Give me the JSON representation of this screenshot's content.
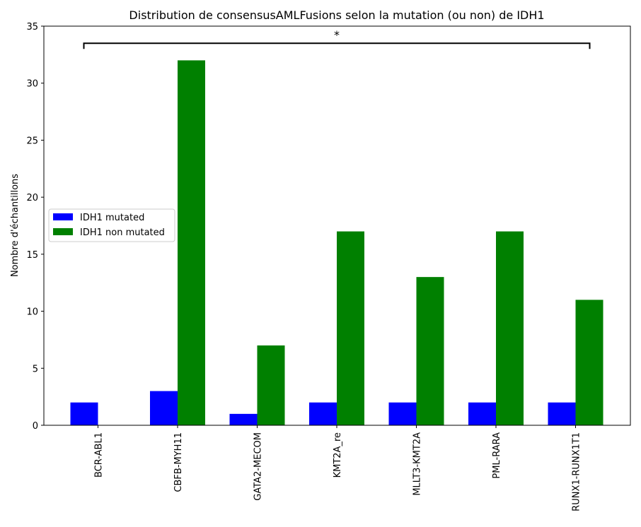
{
  "chart_data": {
    "type": "bar",
    "title": "Distribution de consensusAMLFusions selon la mutation (ou non) de IDH1",
    "xlabel": "",
    "ylabel": "Nombre d'échantillons",
    "categories": [
      "BCR-ABL1",
      "CBFB-MYH11",
      "GATA2-MECOM",
      "KMT2A_re",
      "MLLT3-KMT2A",
      "PML-RARA",
      "RUNX1-RUNX1T1"
    ],
    "series": [
      {
        "name": "IDH1 mutated",
        "color": "#0000ff",
        "values": [
          2,
          3,
          1,
          2,
          2,
          2,
          2
        ]
      },
      {
        "name": "IDH1 non mutated",
        "color": "#008000",
        "values": [
          0,
          32,
          7,
          17,
          13,
          17,
          11
        ]
      }
    ],
    "ylim": [
      0,
      35
    ],
    "yticks": [
      0,
      5,
      10,
      15,
      20,
      25,
      30,
      35
    ],
    "legend": "center-left",
    "grid": false,
    "annotation": {
      "text": "*",
      "y": 33.5,
      "from_category": 0,
      "to_category": 6
    }
  }
}
